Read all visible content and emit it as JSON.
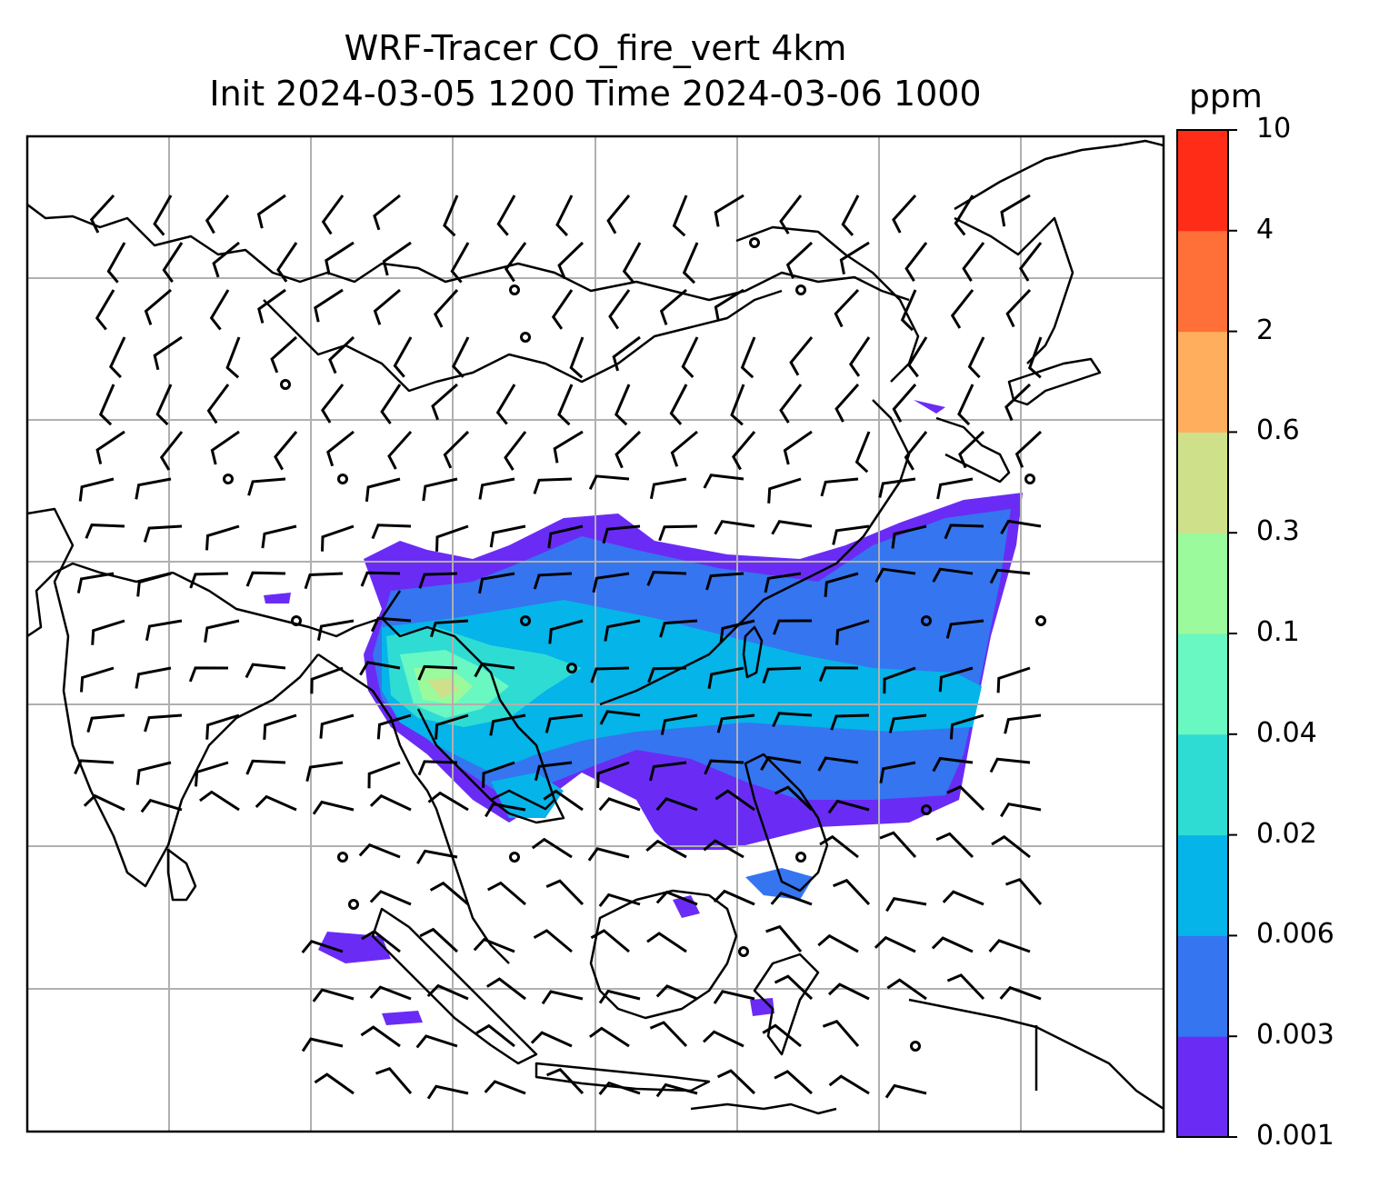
{
  "title": {
    "line1": "WRF-Tracer CO_fire_vert 4km",
    "line2": "Init 2024-03-05 1200 Time 2024-03-06 1000"
  },
  "colorbar": {
    "unit": "ppm",
    "levels": [
      "0.001",
      "0.003",
      "0.006",
      "0.02",
      "0.04",
      "0.1",
      "0.3",
      "0.6",
      "2",
      "4",
      "10"
    ],
    "colors": [
      "#6a2cf5",
      "#3575f0",
      "#05b4e8",
      "#2fdcd4",
      "#69f7c2",
      "#9bfa9b",
      "#cfe08a",
      "#ffae5e",
      "#ff7038",
      "#ff2d18"
    ]
  },
  "layers": {
    "basemap": "coastlines-and-borders",
    "gridlines": true,
    "wind_barbs": true,
    "tracer_field": "CO_fire_vert"
  }
}
